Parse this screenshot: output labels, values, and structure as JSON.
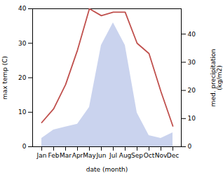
{
  "chart_data": {
    "type": "line",
    "categories": [
      "Jan",
      "Feb",
      "Mar",
      "Apr",
      "May",
      "Jun",
      "Jul",
      "Aug",
      "Sep",
      "Oct",
      "Nov",
      "Dec"
    ],
    "xlabel": "date (month)",
    "ylabel": "max temp (C)",
    "y2label": "med. precipitation\n(kg/m2)",
    "ylim": [
      0,
      40
    ],
    "yticks": [
      0,
      10,
      20,
      30,
      40
    ],
    "y2lim": [
      0,
      49
    ],
    "y2ticks": [
      0,
      10,
      20,
      30,
      40
    ],
    "series": [
      {
        "type": "area",
        "axis": "y2",
        "color": "#b8c4e8",
        "values": [
          3,
          6,
          7,
          8,
          14,
          36,
          44,
          36,
          12,
          4,
          3,
          5
        ]
      },
      {
        "type": "line",
        "color": "#c0504d",
        "values": [
          7,
          11,
          18,
          28,
          40,
          38,
          39,
          39,
          30,
          27,
          16,
          6
        ]
      }
    ]
  }
}
